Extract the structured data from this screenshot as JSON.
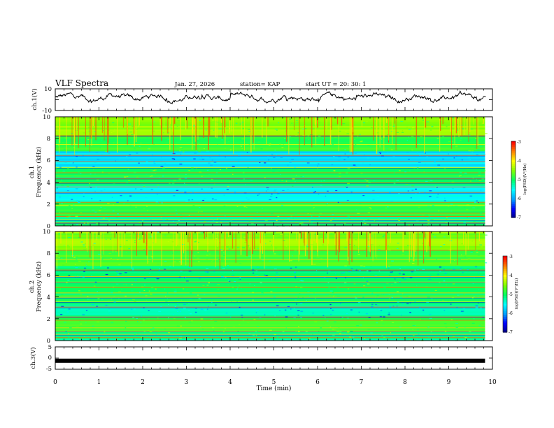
{
  "header": {
    "title": "VLF Spectra",
    "date": "Jan. 27, 2026",
    "station": "station= KAP",
    "start_ut": "start  UT =   20: 30: 1"
  },
  "colors": {
    "trace": "#000000",
    "axis": "#000000",
    "colormap": [
      "#000080",
      "#0000ff",
      "#00a0ff",
      "#00ffff",
      "#00ff60",
      "#80ff00",
      "#ffff00",
      "#ff8000",
      "#ff0000",
      "#ff80ff",
      "#ffffff"
    ]
  },
  "chart_data": [
    {
      "type": "line",
      "name": "ch1-waveform",
      "ylabel": "ch.1(V)",
      "ylim": [
        -10,
        10
      ],
      "yticks": [
        "10",
        "-10"
      ],
      "xlim": [
        0,
        10
      ],
      "description_values": "noisy waveform between about -4 and 8 V",
      "y_range_observed": [
        -4,
        8
      ]
    },
    {
      "type": "heatmap",
      "name": "ch1-spectrogram",
      "ylabel_channel": "ch.1",
      "ylabel": "Frequency (kHz)",
      "ylim": [
        0,
        10
      ],
      "yticks": [
        "0",
        "2",
        "4",
        "6",
        "8",
        "10"
      ],
      "xlim": [
        0,
        10
      ],
      "data_end_min": 9.83,
      "colorbar": {
        "label": "log(PSD)(V²/Hz)",
        "range": [
          -7,
          -3
        ],
        "ticks": [
          "-3",
          "-4",
          "-5",
          "-6",
          "-7"
        ]
      }
    },
    {
      "type": "heatmap",
      "name": "ch2-spectrogram",
      "ylabel_channel": "ch.2",
      "ylabel": "Frequency (kHz)",
      "ylim": [
        0,
        10
      ],
      "yticks": [
        "0",
        "2",
        "4",
        "6",
        "8",
        "10"
      ],
      "xlim": [
        0,
        10
      ],
      "data_end_min": 9.83,
      "colorbar": {
        "label": "log(PSD)(V²/Hz)",
        "range": [
          -7,
          -3
        ],
        "ticks": [
          "-3",
          "-4",
          "-5",
          "-6",
          "-7"
        ]
      }
    },
    {
      "type": "line",
      "name": "ch3-waveform",
      "ylabel": "ch.3(V)",
      "ylim": [
        -5,
        5
      ],
      "yticks": [
        "5",
        "0",
        "-5"
      ],
      "xlim": [
        0,
        10
      ],
      "constant_value": -1.2,
      "data_end_min": 9.83
    }
  ],
  "xaxis": {
    "label": "Time (min)",
    "ticks": [
      "0",
      "1",
      "2",
      "3",
      "4",
      "5",
      "6",
      "7",
      "8",
      "9",
      "10"
    ]
  }
}
